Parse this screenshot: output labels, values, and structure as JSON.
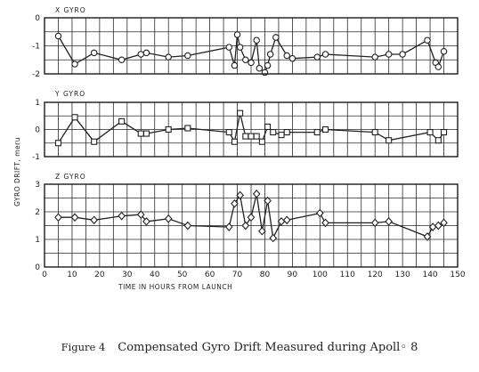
{
  "caption": {
    "number": "Figure 4",
    "text": "Compensated Gyro Drift Measured during Apoll◦ 8"
  },
  "chart_data": {
    "type": "line",
    "xlabel": "TIME IN HOURS FROM LAUNCH",
    "ylabel": "GYRO DRIFT, meru",
    "xlim": [
      0,
      150
    ],
    "xticks": [
      0,
      10,
      20,
      30,
      40,
      50,
      60,
      70,
      80,
      90,
      100,
      110,
      120,
      130,
      140,
      150
    ],
    "grid": true,
    "panels": [
      {
        "title": "X GYRO",
        "marker": "circle",
        "ylim": [
          -2,
          0
        ],
        "yticks": [
          -2,
          -1,
          0
        ],
        "x": [
          5,
          11,
          18,
          28,
          35,
          37,
          45,
          52,
          67,
          69,
          70,
          71,
          73,
          75,
          77,
          78,
          80,
          81,
          82,
          84,
          88,
          90,
          99,
          102,
          120,
          125,
          130,
          139,
          142,
          143,
          145
        ],
        "y": [
          -0.65,
          -1.65,
          -1.25,
          -1.5,
          -1.3,
          -1.25,
          -1.4,
          -1.35,
          -1.05,
          -1.7,
          -0.6,
          -1.05,
          -1.5,
          -1.6,
          -0.8,
          -1.8,
          -1.95,
          -1.7,
          -1.3,
          -0.7,
          -1.35,
          -1.45,
          -1.4,
          -1.3,
          -1.4,
          -1.3,
          -1.3,
          -0.8,
          -1.6,
          -1.75,
          -1.2
        ]
      },
      {
        "title": "Y GYRO",
        "marker": "square",
        "ylim": [
          -1,
          1
        ],
        "yticks": [
          -1,
          0,
          1
        ],
        "x": [
          5,
          11,
          18,
          28,
          35,
          37,
          45,
          52,
          67,
          69,
          71,
          73,
          75,
          77,
          79,
          81,
          83,
          86,
          88,
          99,
          102,
          120,
          125,
          140,
          143,
          145
        ],
        "y": [
          -0.5,
          0.45,
          -0.45,
          0.3,
          -0.15,
          -0.15,
          0.0,
          0.05,
          -0.1,
          -0.45,
          0.6,
          -0.25,
          -0.25,
          -0.25,
          -0.45,
          0.1,
          -0.1,
          -0.2,
          -0.1,
          -0.1,
          0.0,
          -0.1,
          -0.4,
          -0.1,
          -0.4,
          -0.1
        ]
      },
      {
        "title": "Z GYRO",
        "marker": "diamond",
        "ylim": [
          0,
          3
        ],
        "yticks": [
          0,
          1,
          2,
          3
        ],
        "x": [
          5,
          11,
          18,
          28,
          35,
          37,
          45,
          52,
          67,
          69,
          71,
          73,
          75,
          77,
          79,
          81,
          83,
          86,
          88,
          100,
          102,
          120,
          125,
          139,
          141,
          143,
          145
        ],
        "y": [
          1.8,
          1.8,
          1.7,
          1.85,
          1.9,
          1.65,
          1.75,
          1.5,
          1.45,
          2.3,
          2.6,
          1.5,
          1.8,
          2.65,
          1.3,
          2.4,
          1.05,
          1.65,
          1.7,
          1.95,
          1.6,
          1.6,
          1.65,
          1.1,
          1.45,
          1.5,
          1.6
        ]
      }
    ]
  }
}
